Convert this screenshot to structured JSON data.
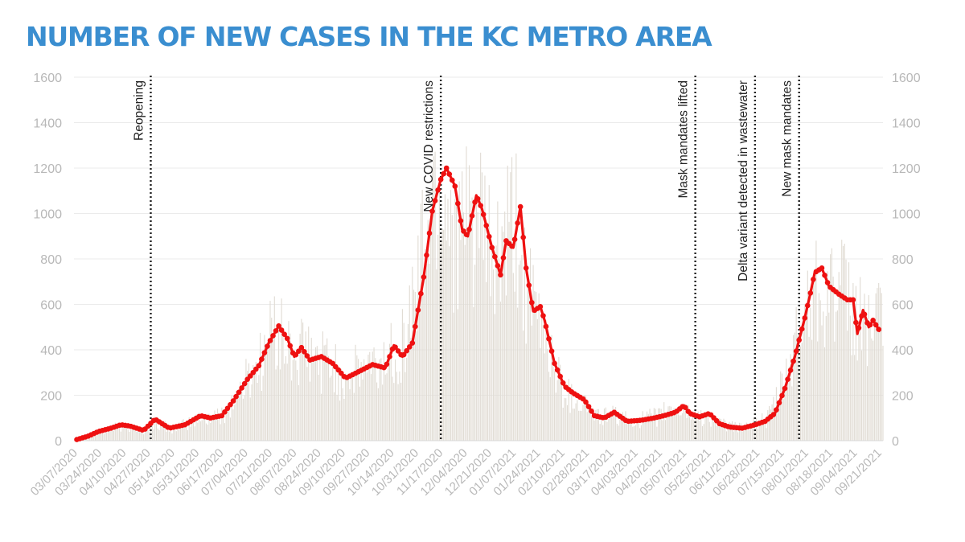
{
  "title": "NUMBER OF NEW CASES IN THE KC METRO AREA",
  "chart_data": {
    "type": "bar",
    "title": "NUMBER OF NEW CASES IN THE KC METRO AREA",
    "xlabel": "",
    "ylabel": "",
    "ylim": [
      0,
      1600
    ],
    "y_ticks": [
      0,
      200,
      400,
      600,
      800,
      1000,
      1200,
      1400,
      1600
    ],
    "y_axis_right": true,
    "grid": true,
    "x_range": [
      "2020-03-07",
      "2021-09-27"
    ],
    "x_tick_labels": [
      "03/07/2020",
      "03/24/2020",
      "04/10/2020",
      "04/27/2020",
      "05/14/2020",
      "05/31/2020",
      "06/17/2020",
      "07/04/2020",
      "07/21/2020",
      "08/07/2020",
      "08/24/2020",
      "09/10/2020",
      "09/27/2020",
      "10/14/2020",
      "10/31/2020",
      "11/17/2020",
      "12/04/2020",
      "12/21/2020",
      "01/07/2021",
      "01/24/2021",
      "02/10/2021",
      "02/28/2021",
      "03/17/2021",
      "04/03/2021",
      "04/20/2021",
      "05/07/2021",
      "05/25/2021",
      "06/11/2021",
      "06/28/2021",
      "07/15/2021",
      "08/01/2021",
      "08/18/2021",
      "09/04/2021",
      "09/21/2021"
    ],
    "annotations": [
      {
        "date": "2020-04-30",
        "label": "Reopening"
      },
      {
        "date": "2020-11-20",
        "label": "New COVID restrictions"
      },
      {
        "date": "2021-05-18",
        "label": "Mask mandates lifted"
      },
      {
        "date": "2021-06-29",
        "label": "Delta variant detected in wastewater"
      },
      {
        "date": "2021-07-30",
        "label": "New mask mandates"
      }
    ],
    "series": [
      {
        "kind": "bar",
        "keypoints": [
          [
            "2020-03-07",
            0
          ],
          [
            "2020-03-15",
            15
          ],
          [
            "2020-03-24",
            30
          ],
          [
            "2020-04-03",
            60
          ],
          [
            "2020-04-15",
            65
          ],
          [
            "2020-04-25",
            45
          ],
          [
            "2020-05-03",
            85
          ],
          [
            "2020-05-14",
            55
          ],
          [
            "2020-05-25",
            75
          ],
          [
            "2020-06-05",
            105
          ],
          [
            "2020-06-17",
            110
          ],
          [
            "2020-06-27",
            180
          ],
          [
            "2020-07-07",
            290
          ],
          [
            "2020-07-17",
            380
          ],
          [
            "2020-07-26",
            530
          ],
          [
            "2020-08-03",
            430
          ],
          [
            "2020-08-10",
            370
          ],
          [
            "2020-08-16",
            420
          ],
          [
            "2020-08-24",
            360
          ],
          [
            "2020-09-01",
            380
          ],
          [
            "2020-09-10",
            300
          ],
          [
            "2020-09-20",
            310
          ],
          [
            "2020-09-30",
            340
          ],
          [
            "2020-10-08",
            330
          ],
          [
            "2020-10-16",
            420
          ],
          [
            "2020-10-25",
            450
          ],
          [
            "2020-11-02",
            700
          ],
          [
            "2020-11-12",
            1050
          ],
          [
            "2020-11-18",
            1180
          ],
          [
            "2020-11-26",
            1100
          ],
          [
            "2020-12-04",
            900
          ],
          [
            "2020-12-10",
            1020
          ],
          [
            "2020-12-18",
            960
          ],
          [
            "2020-12-28",
            800
          ],
          [
            "2021-01-05",
            900
          ],
          [
            "2021-01-11",
            980
          ],
          [
            "2021-01-17",
            780
          ],
          [
            "2021-01-24",
            580
          ],
          [
            "2021-02-01",
            500
          ],
          [
            "2021-02-10",
            300
          ],
          [
            "2021-02-18",
            210
          ],
          [
            "2021-02-28",
            180
          ],
          [
            "2021-03-10",
            110
          ],
          [
            "2021-03-20",
            120
          ],
          [
            "2021-03-31",
            95
          ],
          [
            "2021-04-12",
            100
          ],
          [
            "2021-04-22",
            110
          ],
          [
            "2021-05-01",
            150
          ],
          [
            "2021-05-10",
            130
          ],
          [
            "2021-05-25",
            110
          ],
          [
            "2021-06-08",
            70
          ],
          [
            "2021-06-20",
            60
          ],
          [
            "2021-06-30",
            80
          ],
          [
            "2021-07-08",
            100
          ],
          [
            "2021-07-18",
            240
          ],
          [
            "2021-07-28",
            450
          ],
          [
            "2021-08-05",
            640
          ],
          [
            "2021-08-14",
            760
          ],
          [
            "2021-08-22",
            700
          ],
          [
            "2021-08-31",
            650
          ],
          [
            "2021-09-08",
            550
          ],
          [
            "2021-09-16",
            560
          ],
          [
            "2021-09-26",
            520
          ]
        ]
      },
      {
        "kind": "line",
        "keypoints": [
          [
            "2020-03-09",
            5
          ],
          [
            "2020-03-17",
            20
          ],
          [
            "2020-03-24",
            40
          ],
          [
            "2020-04-02",
            55
          ],
          [
            "2020-04-09",
            70
          ],
          [
            "2020-04-15",
            65
          ],
          [
            "2020-04-25",
            45
          ],
          [
            "2020-05-03",
            95
          ],
          [
            "2020-05-13",
            55
          ],
          [
            "2020-05-24",
            70
          ],
          [
            "2020-06-04",
            110
          ],
          [
            "2020-06-11",
            100
          ],
          [
            "2020-06-19",
            110
          ],
          [
            "2020-06-27",
            175
          ],
          [
            "2020-07-07",
            270
          ],
          [
            "2020-07-15",
            330
          ],
          [
            "2020-07-22",
            430
          ],
          [
            "2020-07-29",
            505
          ],
          [
            "2020-08-04",
            450
          ],
          [
            "2020-08-09",
            370
          ],
          [
            "2020-08-14",
            410
          ],
          [
            "2020-08-20",
            355
          ],
          [
            "2020-08-28",
            370
          ],
          [
            "2020-09-05",
            340
          ],
          [
            "2020-09-14",
            275
          ],
          [
            "2020-09-22",
            300
          ],
          [
            "2020-10-03",
            335
          ],
          [
            "2020-10-12",
            320
          ],
          [
            "2020-10-18",
            420
          ],
          [
            "2020-10-24",
            370
          ],
          [
            "2020-10-31",
            430
          ],
          [
            "2020-11-08",
            720
          ],
          [
            "2020-11-14",
            1010
          ],
          [
            "2020-11-20",
            1150
          ],
          [
            "2020-11-24",
            1200
          ],
          [
            "2020-11-30",
            1120
          ],
          [
            "2020-12-05",
            930
          ],
          [
            "2020-12-09",
            900
          ],
          [
            "2020-12-15",
            1080
          ],
          [
            "2020-12-19",
            1020
          ],
          [
            "2020-12-26",
            850
          ],
          [
            "2021-01-01",
            730
          ],
          [
            "2021-01-05",
            880
          ],
          [
            "2021-01-10",
            850
          ],
          [
            "2021-01-15",
            1030
          ],
          [
            "2021-01-19",
            760
          ],
          [
            "2021-01-24",
            570
          ],
          [
            "2021-01-29",
            590
          ],
          [
            "2021-02-01",
            530
          ],
          [
            "2021-02-08",
            340
          ],
          [
            "2021-02-15",
            240
          ],
          [
            "2021-02-21",
            210
          ],
          [
            "2021-03-01",
            180
          ],
          [
            "2021-03-08",
            110
          ],
          [
            "2021-03-15",
            100
          ],
          [
            "2021-03-22",
            125
          ],
          [
            "2021-03-31",
            85
          ],
          [
            "2021-04-10",
            90
          ],
          [
            "2021-04-19",
            100
          ],
          [
            "2021-04-26",
            110
          ],
          [
            "2021-05-04",
            125
          ],
          [
            "2021-05-10",
            155
          ],
          [
            "2021-05-14",
            120
          ],
          [
            "2021-05-21",
            105
          ],
          [
            "2021-05-28",
            120
          ],
          [
            "2021-06-04",
            75
          ],
          [
            "2021-06-11",
            60
          ],
          [
            "2021-06-20",
            55
          ],
          [
            "2021-06-29",
            70
          ],
          [
            "2021-07-06",
            85
          ],
          [
            "2021-07-13",
            120
          ],
          [
            "2021-07-20",
            230
          ],
          [
            "2021-07-27",
            370
          ],
          [
            "2021-08-03",
            540
          ],
          [
            "2021-08-07",
            650
          ],
          [
            "2021-08-10",
            740
          ],
          [
            "2021-08-15",
            760
          ],
          [
            "2021-08-20",
            680
          ],
          [
            "2021-08-27",
            645
          ],
          [
            "2021-09-02",
            620
          ],
          [
            "2021-09-06",
            620
          ],
          [
            "2021-09-09",
            470
          ],
          [
            "2021-09-13",
            575
          ],
          [
            "2021-09-17",
            500
          ],
          [
            "2021-09-20",
            530
          ],
          [
            "2021-09-25",
            480
          ]
        ]
      }
    ],
    "colors": {
      "bars": "#e0dbd3",
      "line": "#ee1111",
      "title": "#3a8ed0",
      "grid": "#ebebeb",
      "tick_text": "#b8b8b8",
      "annotation_line": "#222222"
    }
  }
}
